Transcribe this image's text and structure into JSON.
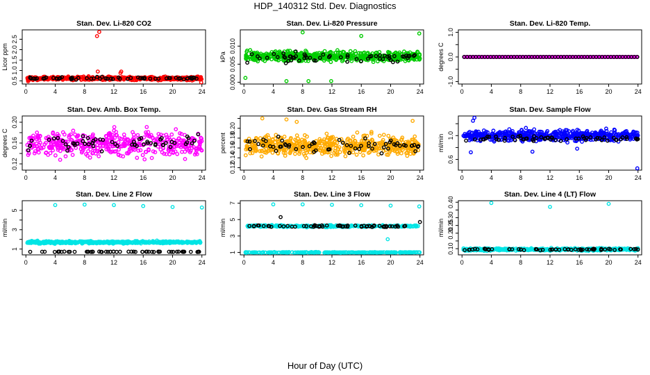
{
  "figure": {
    "title": "HDP_140312  Std. Dev. Diagnostics",
    "xlabel": "Hour of Day (UTC)"
  },
  "chart_data": [
    {
      "type": "scatter",
      "title": "Stan. Dev. Li-820 CO2",
      "ylabel": "Licor ppm",
      "xlim": [
        -0.5,
        24.5
      ],
      "ylim": [
        0.35,
        2.95
      ],
      "xticks": [
        0,
        4,
        8,
        12,
        16,
        20,
        24
      ],
      "yticks": [
        0.5,
        1.0,
        1.5,
        2.0,
        2.5
      ],
      "ytick_labels": [
        "0.5",
        "1.0",
        "1.5",
        "2.0",
        "2.5"
      ],
      "series": [
        {
          "color": "#ff0000",
          "base": 0.62,
          "spread": 0.08,
          "n": 520,
          "outliers": [
            [
              9.7,
              2.65
            ],
            [
              10.0,
              2.85
            ],
            [
              9.8,
              0.95
            ],
            [
              13.0,
              0.95
            ],
            [
              12.9,
              0.88
            ],
            [
              23.9,
              0.43
            ],
            [
              0.3,
              0.48
            ]
          ]
        },
        {
          "color": "#000000",
          "base": 0.62,
          "spread": 0.06,
          "n": 60,
          "outliers": []
        }
      ]
    },
    {
      "type": "scatter",
      "title": "Stan. Dev. Li-820 Pressure",
      "ylabel": "kPa",
      "xlim": [
        -0.5,
        24.5
      ],
      "ylim": [
        -0.0005,
        0.0145
      ],
      "xticks": [
        0,
        4,
        8,
        12,
        16,
        20,
        24
      ],
      "yticks": [
        0.0,
        0.005,
        0.01
      ],
      "ytick_labels": [
        "0.000",
        "0.005",
        "0.010"
      ],
      "series": [
        {
          "color": "#00cc00",
          "base": 0.0072,
          "spread": 0.0014,
          "n": 560,
          "outliers": [
            [
              8.0,
              0.0138
            ],
            [
              23.9,
              0.0135
            ],
            [
              16.0,
              0.0128
            ],
            [
              11.9,
              0.0003
            ],
            [
              8.8,
              0.0003
            ],
            [
              5.8,
              0.0003
            ],
            [
              0.2,
              0.0012
            ]
          ]
        },
        {
          "color": "#000000",
          "base": 0.0068,
          "spread": 0.0012,
          "n": 60,
          "outliers": []
        }
      ]
    },
    {
      "type": "scatter",
      "title": "Stan. Dev. Li-820 Temp.",
      "ylabel": "degrees C",
      "xlim": [
        -0.5,
        24.5
      ],
      "ylim": [
        -1.1,
        1.1
      ],
      "xticks": [
        0,
        4,
        8,
        12,
        16,
        20,
        24
      ],
      "yticks": [
        -1.0,
        -0.5,
        0.0,
        0.5,
        1.0
      ],
      "ytick_labels": [
        "-1.0",
        "",
        "0.0",
        "",
        "1.0"
      ],
      "series": [
        {
          "color": "#ff00ff",
          "base": 0.0,
          "spread": 0.0,
          "n": 150,
          "outliers": [],
          "line": true
        },
        {
          "color": "#000000",
          "base": 0.0,
          "spread": 0.0,
          "n": 60,
          "outliers": [],
          "line": true
        }
      ]
    },
    {
      "type": "scatter",
      "title": "Stan. Dev. Amb. Box Temp.",
      "ylabel": "degrees C",
      "xlim": [
        -0.5,
        24.5
      ],
      "ylim": [
        0.108,
        0.212
      ],
      "xticks": [
        0,
        4,
        8,
        12,
        16,
        20,
        24
      ],
      "yticks": [
        0.12,
        0.14,
        0.16,
        0.18,
        0.2
      ],
      "ytick_labels": [
        "0.12",
        "",
        "0.16",
        "",
        "0.20"
      ],
      "series": [
        {
          "color": "#ff00ff",
          "base": 0.158,
          "spread": 0.024,
          "n": 480,
          "outliers": []
        },
        {
          "color": "#000000",
          "base": 0.16,
          "spread": 0.015,
          "n": 60,
          "outliers": []
        }
      ]
    },
    {
      "type": "scatter",
      "title": "Stan. Dev. Gas Stream RH",
      "ylabel": "percent",
      "xlim": [
        -0.5,
        24.5
      ],
      "ylim": [
        0.115,
        0.225
      ],
      "xticks": [
        0,
        4,
        8,
        12,
        16,
        20,
        24
      ],
      "yticks": [
        0.12,
        0.14,
        0.16,
        0.18,
        0.2,
        0.22
      ],
      "ytick_labels": [
        "0.12",
        "0.14",
        "0.16",
        "0.18",
        "0.20",
        ""
      ],
      "series": [
        {
          "color": "#ffaa00",
          "base": 0.165,
          "spread": 0.02,
          "n": 560,
          "outliers": [
            [
              2.5,
              0.22
            ],
            [
              5.8,
              0.218
            ],
            [
              23.0,
              0.215
            ],
            [
              7.2,
              0.213
            ]
          ]
        },
        {
          "color": "#000000",
          "base": 0.165,
          "spread": 0.015,
          "n": 60,
          "outliers": []
        }
      ]
    },
    {
      "type": "scatter",
      "title": "Stan. Dev. Sample Flow",
      "ylabel": "ml/min",
      "xlim": [
        -0.5,
        24.5
      ],
      "ylim": [
        0.42,
        1.33
      ],
      "xticks": [
        0,
        4,
        8,
        12,
        16,
        20,
        24
      ],
      "yticks": [
        0.6,
        0.8,
        1.0,
        1.2
      ],
      "ytick_labels": [
        "0.6",
        "",
        "1.0",
        ""
      ],
      "series": [
        {
          "color": "#0000ff",
          "base": 1.0,
          "spread": 0.09,
          "n": 560,
          "outliers": [
            [
              1.7,
              1.3
            ],
            [
              1.5,
              1.25
            ],
            [
              1.2,
              0.72
            ],
            [
              23.9,
              0.45
            ],
            [
              9.6,
              0.73
            ],
            [
              15.7,
              0.78
            ]
          ]
        },
        {
          "color": "#000000",
          "base": 0.95,
          "spread": 0.04,
          "n": 60,
          "outliers": []
        }
      ]
    },
    {
      "type": "scatter",
      "title": "Stan. Dev. Line 2 Flow",
      "ylabel": "ml/min",
      "xlim": [
        -0.5,
        24.5
      ],
      "ylim": [
        0.4,
        6.0
      ],
      "xticks": [
        0,
        4,
        8,
        12,
        16,
        20,
        24
      ],
      "yticks": [
        1,
        2,
        3,
        4,
        5
      ],
      "ytick_labels": [
        "1",
        "",
        "3",
        "",
        "5"
      ],
      "series": [
        {
          "color": "#00e5e5",
          "base": 1.7,
          "spread": 0.12,
          "n": 520,
          "outliers": [
            [
              4.0,
              5.55
            ],
            [
              8.0,
              5.6
            ],
            [
              12.0,
              5.55
            ],
            [
              16.0,
              5.45
            ],
            [
              20.0,
              5.35
            ],
            [
              24.0,
              5.3
            ]
          ]
        },
        {
          "color": "#000000",
          "base": 0.72,
          "spread": 0.02,
          "n": 60,
          "outliers": []
        }
      ]
    },
    {
      "type": "scatter",
      "title": "Stan. Dev. Line 3 Flow",
      "ylabel": "ml/min",
      "xlim": [
        -0.5,
        24.5
      ],
      "ylim": [
        0.7,
        7.3
      ],
      "xticks": [
        0,
        4,
        8,
        12,
        16,
        20,
        24
      ],
      "yticks": [
        1,
        3,
        5,
        7
      ],
      "ytick_labels": [
        "1",
        "3",
        "5",
        "7"
      ],
      "series": [
        {
          "color": "#00e5e5",
          "base": 4.2,
          "spread": 0.12,
          "n": 300,
          "outliers": [
            [
              4.0,
              6.85
            ],
            [
              8.0,
              6.85
            ],
            [
              12.0,
              6.8
            ],
            [
              16.0,
              6.75
            ],
            [
              20.0,
              6.7
            ],
            [
              23.9,
              6.6
            ],
            [
              19.6,
              2.6
            ]
          ]
        },
        {
          "color": "#00e5e5",
          "base": 1.0,
          "spread": 0.04,
          "n": 260,
          "outliers": []
        },
        {
          "color": "#000000",
          "base": 4.2,
          "spread": 0.12,
          "n": 60,
          "outliers": [
            [
              5.0,
              5.3
            ],
            [
              24.0,
              4.7
            ]
          ]
        }
      ]
    },
    {
      "type": "scatter",
      "title": "Stan. Dev. Line 4 (LT) Flow",
      "ylabel": "ml/min",
      "xlim": [
        -0.5,
        24.5
      ],
      "ylim": [
        0.06,
        0.41
      ],
      "xticks": [
        0,
        4,
        8,
        12,
        16,
        20,
        24
      ],
      "yticks": [
        0.1,
        0.15,
        0.2,
        0.25,
        0.3,
        0.35,
        0.4
      ],
      "ytick_labels": [
        "0.10",
        "",
        "0.20",
        "0.25",
        "0.30",
        "",
        "0.40"
      ],
      "series": [
        {
          "color": "#00e5e5",
          "base": 0.095,
          "spread": 0.008,
          "n": 520,
          "outliers": [
            [
              4.0,
              0.395
            ],
            [
              12.0,
              0.37
            ],
            [
              20.0,
              0.39
            ]
          ]
        },
        {
          "color": "#000000",
          "base": 0.095,
          "spread": 0.005,
          "n": 60,
          "outliers": []
        }
      ]
    }
  ]
}
